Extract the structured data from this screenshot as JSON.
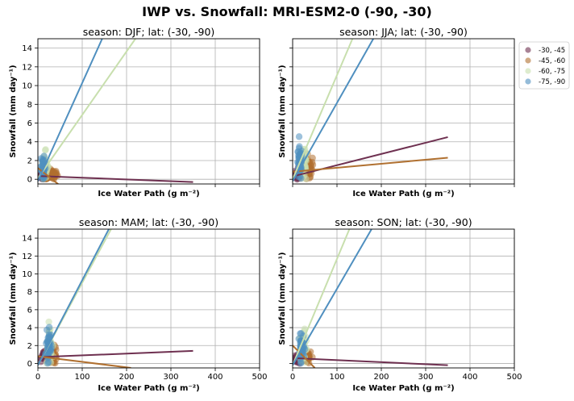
{
  "figure": {
    "title": "IWP vs. Snowfall: MRI-ESM2-0  (-90, -30)"
  },
  "colors": {
    "-30, -45": "#6e3050",
    "-45, -60": "#b07030",
    "-60, -75": "#c8dfae",
    "-75, -90": "#4f8fbf"
  },
  "legend": {
    "placement": "right of top-right panel",
    "entries": [
      "-30, -45",
      "-45, -60",
      "-60, -75",
      "-75, -90"
    ]
  },
  "chart_data": [
    {
      "type": "scatter",
      "title": "season: DJF; lat: (-30, -90)",
      "xlabel": "Ice Water Path (g m⁻²)",
      "ylabel": "Snowfall (mm day⁻¹)",
      "xlim": [
        0,
        500
      ],
      "ylim": [
        -0.5,
        15
      ],
      "xticks": [
        0,
        100,
        200,
        300,
        400,
        500
      ],
      "yticks": [
        0,
        2,
        4,
        6,
        8,
        10,
        12,
        14
      ],
      "show_xticklabels": false,
      "show_yticklabels": true,
      "grid": true,
      "series": [
        {
          "name": "-30, -45",
          "clusters": [
            [
              10,
              0.35,
              6,
              0.2
            ]
          ],
          "fit": [
            [
              0,
              0.35
            ],
            [
              350,
              -0.3
            ]
          ]
        },
        {
          "name": "-45, -60",
          "clusters": [
            [
              32,
              0.5,
              13,
              0.4
            ],
            [
              18,
              0.2,
              6,
              0.2
            ]
          ],
          "fit": [
            [
              0,
              1.2
            ],
            [
              48,
              -0.6
            ]
          ]
        },
        {
          "name": "-60, -75",
          "clusters": [
            [
              16,
              1.2,
              6,
              1.1
            ]
          ],
          "fit": [
            [
              0,
              0.1
            ],
            [
              220,
              15
            ]
          ]
        },
        {
          "name": "-75, -90",
          "clusters": [
            [
              12,
              1.0,
              5,
              0.9
            ]
          ],
          "fit": [
            [
              0,
              -0.2
            ],
            [
              145,
              15
            ]
          ]
        }
      ]
    },
    {
      "type": "scatter",
      "title": "season: JJA; lat: (-30, -90)",
      "xlabel": "Ice Water Path (g m⁻²)",
      "ylabel": "Snowfall (mm day⁻¹)",
      "xlim": [
        0,
        500
      ],
      "ylim": [
        -0.5,
        15
      ],
      "xticks": [
        0,
        100,
        200,
        300,
        400,
        500
      ],
      "yticks": [
        0,
        2,
        4,
        6,
        8,
        10,
        12,
        14
      ],
      "show_xticklabels": false,
      "show_yticklabels": false,
      "grid": true,
      "series": [
        {
          "name": "-30, -45",
          "clusters": [
            [
              12,
              0.5,
              8,
              0.4
            ]
          ],
          "fit": [
            [
              0,
              0.3
            ],
            [
              350,
              4.5
            ]
          ]
        },
        {
          "name": "-45, -60",
          "clusters": [
            [
              36,
              1.2,
              9,
              1.1
            ]
          ],
          "fit": [
            [
              0,
              0.8
            ],
            [
              350,
              2.3
            ]
          ]
        },
        {
          "name": "-60, -75",
          "clusters": [
            [
              24,
              2.0,
              9,
              1.9
            ]
          ],
          "fit": [
            [
              0,
              0.0
            ],
            [
              135,
              15
            ]
          ]
        },
        {
          "name": "-75, -90",
          "clusters": [
            [
              16,
              1.6,
              7,
              1.5
            ]
          ],
          "fit": [
            [
              0,
              -0.2
            ],
            [
              182,
              15
            ]
          ]
        }
      ]
    },
    {
      "type": "scatter",
      "title": "season: MAM; lat: (-30, -90)",
      "xlabel": "Ice Water Path (g m⁻²)",
      "ylabel": "Snowfall (mm day⁻¹)",
      "xlim": [
        0,
        500
      ],
      "ylim": [
        -0.5,
        15
      ],
      "xticks": [
        0,
        100,
        200,
        300,
        400,
        500
      ],
      "yticks": [
        0,
        2,
        4,
        6,
        8,
        10,
        12,
        14
      ],
      "show_xticklabels": true,
      "show_yticklabels": true,
      "grid": true,
      "series": [
        {
          "name": "-30, -45",
          "clusters": [
            [
              15,
              0.8,
              8,
              0.4
            ]
          ],
          "fit": [
            [
              0,
              0.7
            ],
            [
              350,
              1.4
            ]
          ]
        },
        {
          "name": "-45, -60",
          "clusters": [
            [
              34,
              0.9,
              11,
              0.8
            ]
          ],
          "fit": [
            [
              0,
              0.8
            ],
            [
              210,
              -0.5
            ]
          ]
        },
        {
          "name": "-60, -75",
          "clusters": [
            [
              26,
              1.9,
              7,
              1.7
            ]
          ],
          "fit": [
            [
              0,
              -0.2
            ],
            [
              165,
              15
            ]
          ]
        },
        {
          "name": "-75, -90",
          "clusters": [
            [
              24,
              1.8,
              7,
              1.6
            ]
          ],
          "fit": [
            [
              0,
              -0.2
            ],
            [
              160,
              15
            ]
          ]
        }
      ]
    },
    {
      "type": "scatter",
      "title": "season: SON; lat: (-30, -90)",
      "xlabel": "Ice Water Path (g m⁻²)",
      "ylabel": "Snowfall (mm day⁻¹)",
      "xlim": [
        0,
        500
      ],
      "ylim": [
        -0.5,
        15
      ],
      "xticks": [
        0,
        100,
        200,
        300,
        400,
        500
      ],
      "yticks": [
        0,
        2,
        4,
        6,
        8,
        10,
        12,
        14
      ],
      "show_xticklabels": true,
      "show_yticklabels": false,
      "grid": true,
      "series": [
        {
          "name": "-30, -45",
          "clusters": [
            [
              12,
              0.5,
              8,
              0.4
            ]
          ],
          "fit": [
            [
              0,
              0.6
            ],
            [
              350,
              -0.2
            ]
          ]
        },
        {
          "name": "-45, -60",
          "clusters": [
            [
              32,
              0.8,
              10,
              0.6
            ]
          ],
          "fit": [
            [
              0,
              2.0
            ],
            [
              50,
              -0.5
            ]
          ]
        },
        {
          "name": "-60, -75",
          "clusters": [
            [
              24,
              1.8,
              7,
              1.6
            ]
          ],
          "fit": [
            [
              0,
              -0.2
            ],
            [
              128,
              15
            ]
          ]
        },
        {
          "name": "-75, -90",
          "clusters": [
            [
              20,
              1.5,
              7,
              1.3
            ]
          ],
          "fit": [
            [
              0,
              -0.2
            ],
            [
              178,
              15
            ]
          ]
        }
      ]
    }
  ]
}
